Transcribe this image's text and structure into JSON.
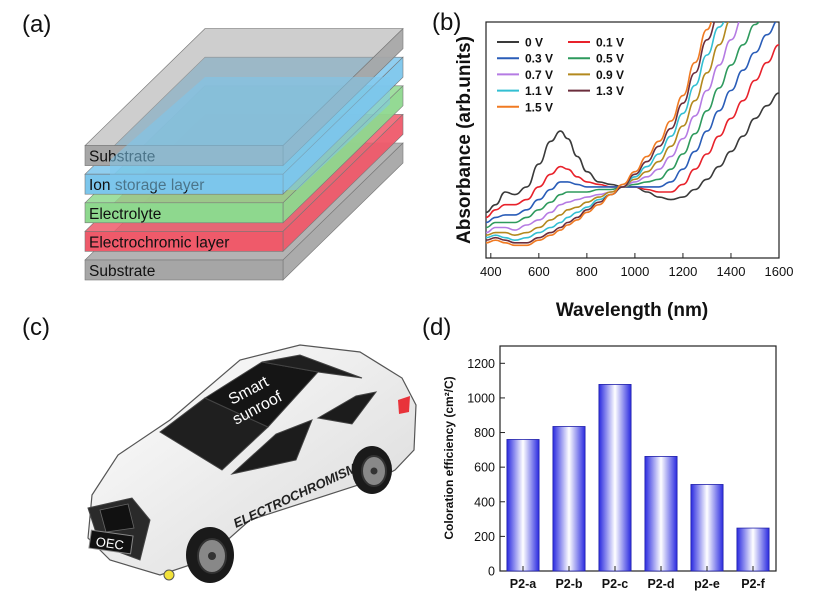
{
  "panels": {
    "a": {
      "letter": "(a)",
      "layers": [
        "Substrate",
        "Ion storage layer",
        "Electrolyte",
        "Electrochromic layer",
        "Substrate"
      ],
      "colors": [
        "#a6a6a6",
        "#7cc6ec",
        "#8ed88e",
        "#ef5a6a",
        "#a6a6a6"
      ]
    },
    "b": {
      "letter": "(b)"
    },
    "c": {
      "letter": "(c)",
      "sunroof_text_1": "Smart",
      "sunroof_text_2": "sunroof",
      "door_text": "ELECTROCHROMISM",
      "plate_text": "OEC"
    },
    "d": {
      "letter": "(d)"
    }
  },
  "chart_data": [
    {
      "type": "line",
      "xlabel": "Wavelength (nm)",
      "ylabel": "Absorbance (arb.units)",
      "xlim": [
        380,
        1600
      ],
      "xticks": [
        400,
        600,
        800,
        1000,
        1200,
        1400,
        1600
      ],
      "y_tick_labels_shown": false,
      "legend_position": "top-left",
      "series": [
        {
          "name": "0 V",
          "color": "#3a3a3a",
          "points": [
            [
              380,
              0.3
            ],
            [
              420,
              0.33
            ],
            [
              460,
              0.38
            ],
            [
              500,
              0.37
            ],
            [
              550,
              0.4
            ],
            [
              600,
              0.49
            ],
            [
              650,
              0.58
            ],
            [
              690,
              0.62
            ],
            [
              720,
              0.59
            ],
            [
              760,
              0.52
            ],
            [
              800,
              0.46
            ],
            [
              850,
              0.42
            ],
            [
              900,
              0.41
            ],
            [
              950,
              0.4
            ],
            [
              1000,
              0.4
            ],
            [
              1050,
              0.38
            ],
            [
              1100,
              0.36
            ],
            [
              1150,
              0.35
            ],
            [
              1200,
              0.36
            ],
            [
              1250,
              0.39
            ],
            [
              1300,
              0.43
            ],
            [
              1350,
              0.48
            ],
            [
              1400,
              0.54
            ],
            [
              1450,
              0.6
            ],
            [
              1500,
              0.67
            ],
            [
              1550,
              0.72
            ],
            [
              1600,
              0.77
            ]
          ]
        },
        {
          "name": "0.1 V",
          "color": "#e8222b",
          "points": [
            [
              380,
              0.28
            ],
            [
              420,
              0.31
            ],
            [
              460,
              0.33
            ],
            [
              500,
              0.33
            ],
            [
              550,
              0.35
            ],
            [
              600,
              0.4
            ],
            [
              650,
              0.45
            ],
            [
              690,
              0.48
            ],
            [
              720,
              0.47
            ],
            [
              760,
              0.44
            ],
            [
              800,
              0.42
            ],
            [
              850,
              0.41
            ],
            [
              900,
              0.4
            ],
            [
              950,
              0.4
            ],
            [
              1000,
              0.4
            ],
            [
              1050,
              0.39
            ],
            [
              1100,
              0.38
            ],
            [
              1150,
              0.38
            ],
            [
              1200,
              0.41
            ],
            [
              1250,
              0.47
            ],
            [
              1300,
              0.53
            ],
            [
              1350,
              0.6
            ],
            [
              1400,
              0.67
            ],
            [
              1450,
              0.74
            ],
            [
              1500,
              0.82
            ],
            [
              1550,
              0.89
            ],
            [
              1600,
              0.96
            ]
          ]
        },
        {
          "name": "0.3 V",
          "color": "#2a5db8",
          "points": [
            [
              380,
              0.26
            ],
            [
              420,
              0.28
            ],
            [
              460,
              0.29
            ],
            [
              500,
              0.29
            ],
            [
              550,
              0.31
            ],
            [
              600,
              0.35
            ],
            [
              650,
              0.39
            ],
            [
              690,
              0.42
            ],
            [
              720,
              0.42
            ],
            [
              760,
              0.41
            ],
            [
              800,
              0.4
            ],
            [
              850,
              0.4
            ],
            [
              900,
              0.4
            ],
            [
              950,
              0.4
            ],
            [
              1000,
              0.4
            ],
            [
              1050,
              0.4
            ],
            [
              1100,
              0.4
            ],
            [
              1150,
              0.42
            ],
            [
              1200,
              0.47
            ],
            [
              1250,
              0.54
            ],
            [
              1300,
              0.62
            ],
            [
              1350,
              0.7
            ],
            [
              1400,
              0.78
            ],
            [
              1450,
              0.86
            ],
            [
              1500,
              0.93
            ],
            [
              1550,
              1.0
            ],
            [
              1600,
              1.06
            ]
          ]
        },
        {
          "name": "0.5 V",
          "color": "#2e9a5d",
          "points": [
            [
              380,
              0.24
            ],
            [
              420,
              0.26
            ],
            [
              460,
              0.26
            ],
            [
              500,
              0.26
            ],
            [
              550,
              0.28
            ],
            [
              600,
              0.31
            ],
            [
              650,
              0.34
            ],
            [
              690,
              0.37
            ],
            [
              720,
              0.38
            ],
            [
              760,
              0.38
            ],
            [
              800,
              0.38
            ],
            [
              850,
              0.39
            ],
            [
              900,
              0.39
            ],
            [
              950,
              0.4
            ],
            [
              1000,
              0.41
            ],
            [
              1050,
              0.42
            ],
            [
              1100,
              0.43
            ],
            [
              1150,
              0.47
            ],
            [
              1200,
              0.53
            ],
            [
              1250,
              0.61
            ],
            [
              1300,
              0.7
            ],
            [
              1350,
              0.79
            ],
            [
              1400,
              0.88
            ],
            [
              1450,
              0.96
            ],
            [
              1500,
              1.04
            ],
            [
              1550,
              1.1
            ],
            [
              1600,
              1.1
            ]
          ]
        },
        {
          "name": "0.7 V",
          "color": "#b57be3",
          "points": [
            [
              380,
              0.22
            ],
            [
              420,
              0.24
            ],
            [
              460,
              0.24
            ],
            [
              500,
              0.23
            ],
            [
              550,
              0.25
            ],
            [
              600,
              0.27
            ],
            [
              650,
              0.3
            ],
            [
              690,
              0.33
            ],
            [
              720,
              0.34
            ],
            [
              760,
              0.35
            ],
            [
              800,
              0.36
            ],
            [
              850,
              0.37
            ],
            [
              900,
              0.38
            ],
            [
              950,
              0.4
            ],
            [
              1000,
              0.42
            ],
            [
              1050,
              0.44
            ],
            [
              1100,
              0.47
            ],
            [
              1150,
              0.52
            ],
            [
              1200,
              0.59
            ],
            [
              1250,
              0.68
            ],
            [
              1300,
              0.78
            ],
            [
              1350,
              0.88
            ],
            [
              1400,
              0.98
            ],
            [
              1450,
              1.07
            ],
            [
              1500,
              1.1
            ]
          ]
        },
        {
          "name": "0.9 V",
          "color": "#b3891e",
          "points": [
            [
              380,
              0.21
            ],
            [
              420,
              0.22
            ],
            [
              460,
              0.22
            ],
            [
              500,
              0.21
            ],
            [
              550,
              0.22
            ],
            [
              600,
              0.24
            ],
            [
              650,
              0.27
            ],
            [
              690,
              0.29
            ],
            [
              720,
              0.31
            ],
            [
              760,
              0.32
            ],
            [
              800,
              0.34
            ],
            [
              850,
              0.36
            ],
            [
              900,
              0.38
            ],
            [
              950,
              0.4
            ],
            [
              1000,
              0.43
            ],
            [
              1050,
              0.46
            ],
            [
              1100,
              0.5
            ],
            [
              1150,
              0.56
            ],
            [
              1200,
              0.64
            ],
            [
              1250,
              0.74
            ],
            [
              1300,
              0.85
            ],
            [
              1350,
              0.96
            ],
            [
              1400,
              1.06
            ],
            [
              1450,
              1.1
            ]
          ]
        },
        {
          "name": "1.1 V",
          "color": "#33bfd2",
          "points": [
            [
              380,
              0.2
            ],
            [
              420,
              0.21
            ],
            [
              460,
              0.2
            ],
            [
              500,
              0.19
            ],
            [
              550,
              0.2
            ],
            [
              600,
              0.22
            ],
            [
              650,
              0.24
            ],
            [
              690,
              0.26
            ],
            [
              720,
              0.28
            ],
            [
              760,
              0.3
            ],
            [
              800,
              0.32
            ],
            [
              850,
              0.35
            ],
            [
              900,
              0.37
            ],
            [
              950,
              0.4
            ],
            [
              1000,
              0.44
            ],
            [
              1050,
              0.48
            ],
            [
              1100,
              0.53
            ],
            [
              1150,
              0.6
            ],
            [
              1200,
              0.69
            ],
            [
              1250,
              0.8
            ],
            [
              1300,
              0.92
            ],
            [
              1350,
              1.03
            ],
            [
              1400,
              1.1
            ]
          ]
        },
        {
          "name": "1.3 V",
          "color": "#6b2d3c",
          "points": [
            [
              380,
              0.19
            ],
            [
              420,
              0.2
            ],
            [
              460,
              0.19
            ],
            [
              500,
              0.18
            ],
            [
              550,
              0.18
            ],
            [
              600,
              0.2
            ],
            [
              650,
              0.22
            ],
            [
              690,
              0.24
            ],
            [
              720,
              0.26
            ],
            [
              760,
              0.28
            ],
            [
              800,
              0.31
            ],
            [
              850,
              0.34
            ],
            [
              900,
              0.37
            ],
            [
              950,
              0.4
            ],
            [
              1000,
              0.45
            ],
            [
              1050,
              0.5
            ],
            [
              1100,
              0.56
            ],
            [
              1150,
              0.63
            ],
            [
              1200,
              0.73
            ],
            [
              1250,
              0.85
            ],
            [
              1300,
              0.98
            ],
            [
              1350,
              1.08
            ],
            [
              1380,
              1.1
            ]
          ]
        },
        {
          "name": "1.5 V",
          "color": "#f07a22",
          "points": [
            [
              380,
              0.18
            ],
            [
              420,
              0.19
            ],
            [
              460,
              0.18
            ],
            [
              500,
              0.17
            ],
            [
              550,
              0.17
            ],
            [
              600,
              0.19
            ],
            [
              650,
              0.21
            ],
            [
              690,
              0.23
            ],
            [
              720,
              0.25
            ],
            [
              760,
              0.27
            ],
            [
              800,
              0.3
            ],
            [
              850,
              0.33
            ],
            [
              900,
              0.37
            ],
            [
              950,
              0.41
            ],
            [
              1000,
              0.46
            ],
            [
              1050,
              0.52
            ],
            [
              1100,
              0.58
            ],
            [
              1150,
              0.66
            ],
            [
              1200,
              0.76
            ],
            [
              1250,
              0.89
            ],
            [
              1300,
              1.02
            ],
            [
              1340,
              1.1
            ]
          ]
        }
      ]
    },
    {
      "type": "bar",
      "xlabel": "",
      "ylabel": "Coloration efficiency (cm²/C)",
      "ylim": [
        0,
        1300
      ],
      "yticks": [
        0,
        200,
        400,
        600,
        800,
        1000,
        1200
      ],
      "categories": [
        "P2-a",
        "P2-b",
        "P2-c",
        "P2-d",
        "p2-e",
        "P2-f"
      ],
      "values": [
        760,
        835,
        1078,
        662,
        500,
        248
      ],
      "bar_color": "#3535e0"
    }
  ]
}
